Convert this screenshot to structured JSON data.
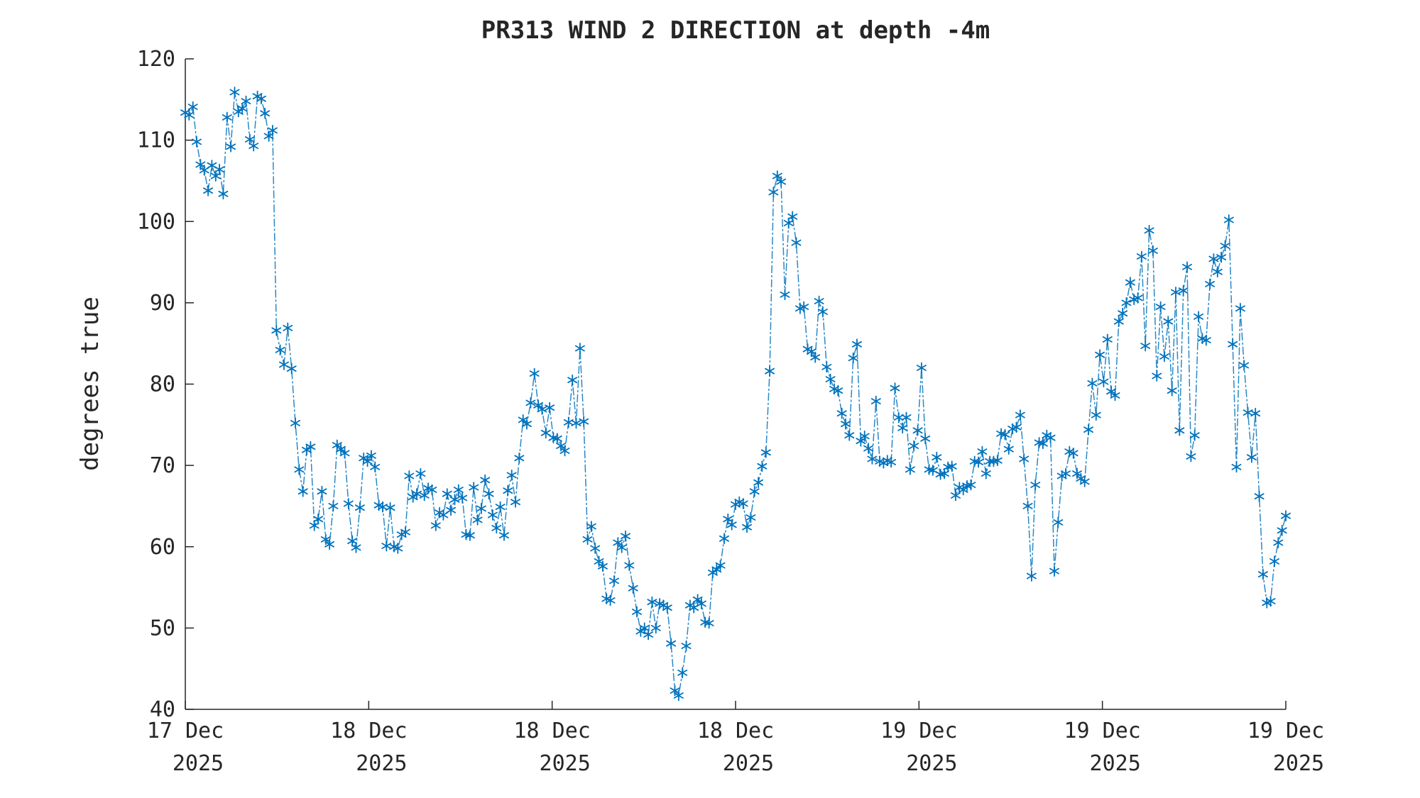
{
  "chart_data": {
    "type": "line",
    "title": "PR313 WIND 2 DIRECTION at depth -4m",
    "ylabel": "degrees true",
    "xlabel": "",
    "ylim": [
      40,
      120
    ],
    "yticks": [
      40,
      50,
      60,
      70,
      80,
      90,
      100,
      110,
      120
    ],
    "xticks": [
      {
        "line1": "17 Dec",
        "line2": "2025"
      },
      {
        "line1": "18 Dec",
        "line2": "2025"
      },
      {
        "line1": "18 Dec",
        "line2": "2025"
      },
      {
        "line1": "18 Dec",
        "line2": "2025"
      },
      {
        "line1": "19 Dec",
        "line2": "2025"
      },
      {
        "line1": "19 Dec",
        "line2": "2025"
      },
      {
        "line1": "19 Dec",
        "line2": "2025"
      }
    ],
    "grid": false,
    "legend": null,
    "marker": "asterisk",
    "line_style": "dash-dot",
    "marker_color": "#0072BD",
    "line_color": "#2A89C7",
    "axis_color": "#262626",
    "series_name": "wind direction (degrees true)",
    "values": [
      113.4,
      113.1,
      114.1,
      109.8,
      107.0,
      106.3,
      103.8,
      106.9,
      105.6,
      106.4,
      103.4,
      112.8,
      109.2,
      115.9,
      113.5,
      113.9,
      114.8,
      110.1,
      109.3,
      115.4,
      115.1,
      113.3,
      110.5,
      111.2,
      86.6,
      84.2,
      82.4,
      86.9,
      81.9,
      75.2,
      69.5,
      66.8,
      71.9,
      72.3,
      62.6,
      63.4,
      66.8,
      60.9,
      60.3,
      65.0,
      72.5,
      72.0,
      71.5,
      65.3,
      60.7,
      59.9,
      64.8,
      70.9,
      70.5,
      71.2,
      69.8,
      65.1,
      64.9,
      60.1,
      64.8,
      60.0,
      59.8,
      61.5,
      61.8,
      68.7,
      66.1,
      66.5,
      69.0,
      66.3,
      67.2,
      67.0,
      62.6,
      64.2,
      63.9,
      66.5,
      64.5,
      65.8,
      67.0,
      66.0,
      61.5,
      61.4,
      67.3,
      63.3,
      64.7,
      68.2,
      66.5,
      63.9,
      62.3,
      64.9,
      61.4,
      66.9,
      68.8,
      65.5,
      70.9,
      75.6,
      75.1,
      77.7,
      81.3,
      77.4,
      76.9,
      74.0,
      77.1,
      73.4,
      73.3,
      72.4,
      71.8,
      75.3,
      80.5,
      75.2,
      84.4,
      75.4,
      60.9,
      62.5,
      59.8,
      58.2,
      57.6,
      53.6,
      53.4,
      55.8,
      60.5,
      59.9,
      61.3,
      57.7,
      54.9,
      52.0,
      49.6,
      50.0,
      49.2,
      53.2,
      50.0,
      53.0,
      52.8,
      52.5,
      48.1,
      42.3,
      41.7,
      44.5,
      47.8,
      52.8,
      52.5,
      53.5,
      53.0,
      50.7,
      50.6,
      56.8,
      57.2,
      57.7,
      61.0,
      63.4,
      62.7,
      65.2,
      65.5,
      65.3,
      62.4,
      63.6,
      66.8,
      67.9,
      69.9,
      71.6,
      81.6,
      103.6,
      105.6,
      104.9,
      91.0,
      99.8,
      100.6,
      97.4,
      89.3,
      89.5,
      84.3,
      84.0,
      83.3,
      90.2,
      88.9,
      82.1,
      80.6,
      79.4,
      79.2,
      76.4,
      75.1,
      73.7,
      83.2,
      84.9,
      73.0,
      73.6,
      72.1,
      70.8,
      77.9,
      70.5,
      70.3,
      70.6,
      70.4,
      79.5,
      75.9,
      74.6,
      75.9,
      69.5,
      72.4,
      74.3,
      82.0,
      73.3,
      69.5,
      69.4,
      71.0,
      68.9,
      69.0,
      69.8,
      69.9,
      66.3,
      67.3,
      67.0,
      67.5,
      67.6,
      70.5,
      70.4,
      71.7,
      69.0,
      70.5,
      70.5,
      70.6,
      73.9,
      73.8,
      72.0,
      74.5,
      74.7,
      76.2,
      70.8,
      65.0,
      56.4,
      67.6,
      72.8,
      72.7,
      73.7,
      73.4,
      57.0,
      63.0,
      68.7,
      69.0,
      71.7,
      71.5,
      69.0,
      68.4,
      68.0,
      74.4,
      80.1,
      76.2,
      83.6,
      80.3,
      85.5,
      79.1,
      78.6,
      87.7,
      88.7,
      90.0,
      92.5,
      90.4,
      90.6,
      95.7,
      84.7,
      98.9,
      96.4,
      81.0,
      89.5,
      83.4,
      87.7,
      79.2,
      91.3,
      74.3,
      91.5,
      94.4,
      71.1,
      73.7,
      88.3,
      85.6,
      85.4,
      92.3,
      95.4,
      93.8,
      95.6,
      97.0,
      100.2,
      84.9,
      69.8,
      89.3,
      82.3,
      76.5,
      71.0,
      76.4,
      66.2,
      56.6,
      53.1,
      53.3,
      58.2,
      60.5,
      62.0,
      63.8
    ]
  }
}
